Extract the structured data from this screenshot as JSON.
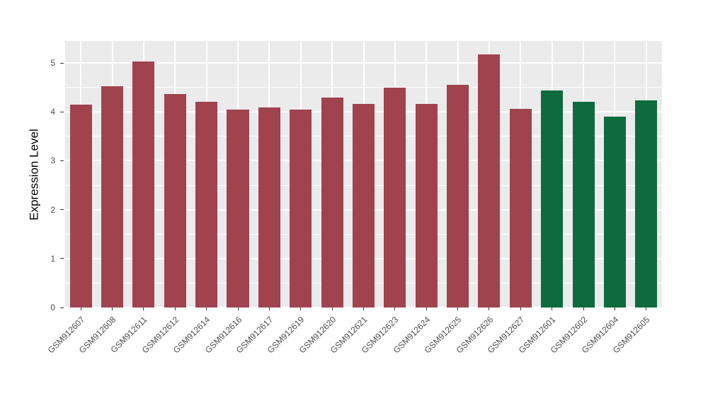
{
  "chart_data": {
    "type": "bar",
    "title": "",
    "xlabel": "",
    "ylabel": "Expression Level",
    "categories": [
      "GSM912607",
      "GSM912608",
      "GSM912611",
      "GSM912612",
      "GSM912614",
      "GSM912616",
      "GSM912617",
      "GSM912619",
      "GSM912620",
      "GSM912621",
      "GSM912623",
      "GSM912624",
      "GSM912625",
      "GSM912626",
      "GSM912627",
      "GSM912601",
      "GSM912602",
      "GSM912604",
      "GSM912605"
    ],
    "values": [
      4.15,
      4.53,
      5.03,
      4.37,
      4.21,
      4.05,
      4.09,
      4.05,
      4.3,
      4.16,
      4.5,
      4.16,
      4.55,
      5.18,
      4.06,
      4.44,
      4.21,
      3.9,
      4.24
    ],
    "bar_colors": [
      "#A0434F",
      "#A0434F",
      "#A0434F",
      "#A0434F",
      "#A0434F",
      "#A0434F",
      "#A0434F",
      "#A0434F",
      "#A0434F",
      "#A0434F",
      "#A0434F",
      "#A0434F",
      "#A0434F",
      "#A0434F",
      "#A0434F",
      "#0E6B3E",
      "#0E6B3E",
      "#0E6B3E",
      "#0E6B3E"
    ],
    "color_legend": {
      "group1_hex": "#A0434F",
      "group2_hex": "#0E6B3E"
    },
    "ylim": [
      0,
      5.45
    ],
    "yticks": [
      0,
      1,
      2,
      3,
      4,
      5
    ],
    "grid": "on",
    "panel_background": "#EBEBEB",
    "grid_color": "#FFFFFF",
    "legend_position": "none"
  }
}
